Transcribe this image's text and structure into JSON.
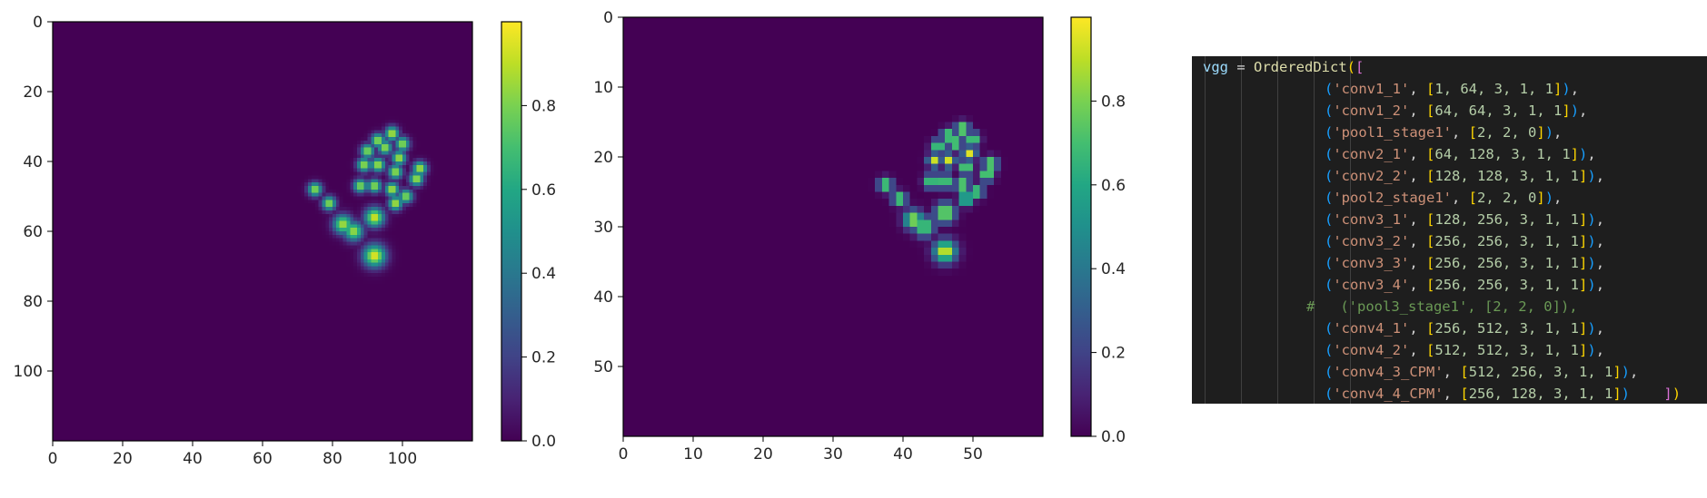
{
  "chart_data": [
    {
      "type": "heatmap",
      "grid_size": [
        120,
        120
      ],
      "xlim": [
        0,
        120
      ],
      "ylim": [
        120,
        0
      ],
      "xticks": [
        0,
        20,
        40,
        60,
        80,
        100
      ],
      "yticks": [
        0,
        20,
        40,
        60,
        80,
        100
      ],
      "colorbar_ticks": [
        0.0,
        0.2,
        0.4,
        0.6,
        0.8
      ],
      "colorbar_tick_labels": [
        "0.0",
        "0.2",
        "0.4",
        "0.6",
        "0.8"
      ],
      "colorbar_range": [
        0.0,
        1.0
      ],
      "colormap": "viridis",
      "sigma": 1.1,
      "peaks": [
        {
          "x": 92,
          "y": 67,
          "v": 0.98,
          "s": 2.0
        },
        {
          "x": 83,
          "y": 58,
          "v": 0.9,
          "s": 1.7
        },
        {
          "x": 86,
          "y": 60,
          "v": 0.88,
          "s": 1.7
        },
        {
          "x": 92,
          "y": 56,
          "v": 0.97,
          "s": 1.7
        },
        {
          "x": 98,
          "y": 52,
          "v": 0.96,
          "s": 1.2
        },
        {
          "x": 101,
          "y": 50,
          "v": 0.88,
          "s": 1.2
        },
        {
          "x": 104,
          "y": 45,
          "v": 0.93,
          "s": 1.2
        },
        {
          "x": 105,
          "y": 42,
          "v": 0.95,
          "s": 1.2
        },
        {
          "x": 97,
          "y": 48,
          "v": 0.95,
          "s": 1.2
        },
        {
          "x": 98,
          "y": 43,
          "v": 0.92,
          "s": 1.2
        },
        {
          "x": 99,
          "y": 39,
          "v": 0.95,
          "s": 1.2
        },
        {
          "x": 100,
          "y": 35,
          "v": 0.9,
          "s": 1.2
        },
        {
          "x": 97,
          "y": 32,
          "v": 0.96,
          "s": 1.2
        },
        {
          "x": 92,
          "y": 47,
          "v": 0.9,
          "s": 1.2
        },
        {
          "x": 93,
          "y": 41,
          "v": 0.93,
          "s": 1.2
        },
        {
          "x": 95,
          "y": 36,
          "v": 0.92,
          "s": 1.2
        },
        {
          "x": 93,
          "y": 34,
          "v": 0.9,
          "s": 1.2
        },
        {
          "x": 88,
          "y": 47,
          "v": 0.88,
          "s": 1.2
        },
        {
          "x": 89,
          "y": 41,
          "v": 0.92,
          "s": 1.2
        },
        {
          "x": 90,
          "y": 37,
          "v": 0.88,
          "s": 1.2
        },
        {
          "x": 79,
          "y": 52,
          "v": 0.9,
          "s": 1.2
        },
        {
          "x": 75,
          "y": 48,
          "v": 0.9,
          "s": 1.2
        }
      ]
    },
    {
      "type": "heatmap",
      "grid_size": [
        60,
        60
      ],
      "xlim": [
        0,
        60
      ],
      "ylim": [
        60,
        0
      ],
      "xticks": [
        0,
        10,
        20,
        30,
        40,
        50
      ],
      "yticks": [
        0,
        10,
        20,
        30,
        40,
        50
      ],
      "colorbar_ticks": [
        0.0,
        0.2,
        0.4,
        0.6,
        0.8
      ],
      "colorbar_tick_labels": [
        "0.0",
        "0.2",
        "0.4",
        "0.6",
        "0.8"
      ],
      "colorbar_range": [
        0.0,
        1.0
      ],
      "colormap": "viridis",
      "sigma": 0.55,
      "peaks": [
        {
          "x": 46,
          "y": 33.5,
          "v": 0.98,
          "s": 2.0
        },
        {
          "x": 41.5,
          "y": 29,
          "v": 0.9,
          "s": 1.7
        },
        {
          "x": 43,
          "y": 30,
          "v": 0.88,
          "s": 1.7
        },
        {
          "x": 46,
          "y": 28,
          "v": 0.97,
          "s": 1.7
        },
        {
          "x": 49,
          "y": 26,
          "v": 0.96,
          "s": 1.2
        },
        {
          "x": 50.5,
          "y": 25,
          "v": 0.88,
          "s": 1.2
        },
        {
          "x": 52,
          "y": 22.5,
          "v": 0.93,
          "s": 1.2
        },
        {
          "x": 52.5,
          "y": 21,
          "v": 0.95,
          "s": 1.2
        },
        {
          "x": 48.5,
          "y": 24,
          "v": 0.95,
          "s": 1.2
        },
        {
          "x": 49,
          "y": 21.5,
          "v": 0.92,
          "s": 1.2
        },
        {
          "x": 49.5,
          "y": 19.5,
          "v": 0.95,
          "s": 1.2
        },
        {
          "x": 50,
          "y": 17.5,
          "v": 0.9,
          "s": 1.2
        },
        {
          "x": 48.5,
          "y": 16,
          "v": 0.96,
          "s": 1.2
        },
        {
          "x": 46,
          "y": 23.5,
          "v": 0.9,
          "s": 1.2
        },
        {
          "x": 46.5,
          "y": 20.5,
          "v": 0.93,
          "s": 1.2
        },
        {
          "x": 47.5,
          "y": 18,
          "v": 0.92,
          "s": 1.2
        },
        {
          "x": 46.5,
          "y": 17,
          "v": 0.9,
          "s": 1.2
        },
        {
          "x": 44,
          "y": 23.5,
          "v": 0.88,
          "s": 1.2
        },
        {
          "x": 44.5,
          "y": 20.5,
          "v": 0.92,
          "s": 1.2
        },
        {
          "x": 45,
          "y": 18.5,
          "v": 0.88,
          "s": 1.2
        },
        {
          "x": 39.5,
          "y": 26,
          "v": 0.9,
          "s": 1.2
        },
        {
          "x": 37.5,
          "y": 24,
          "v": 0.9,
          "s": 1.2
        }
      ]
    }
  ],
  "code": {
    "header": {
      "var": "vgg",
      "op": " = ",
      "fn": "OrderedDict"
    },
    "lines": [
      {
        "name": "'conv1_1'",
        "vals": "1, 64, 3, 1, 1"
      },
      {
        "name": "'conv1_2'",
        "vals": "64, 64, 3, 1, 1"
      },
      {
        "name": "'pool1_stage1'",
        "vals": "2, 2, 0"
      },
      {
        "name": "'conv2_1'",
        "vals": "64, 128, 3, 1, 1"
      },
      {
        "name": "'conv2_2'",
        "vals": "128, 128, 3, 1, 1"
      },
      {
        "name": "'pool2_stage1'",
        "vals": "2, 2, 0"
      },
      {
        "name": "'conv3_1'",
        "vals": "128, 256, 3, 1, 1"
      },
      {
        "name": "'conv3_2'",
        "vals": "256, 256, 3, 1, 1"
      },
      {
        "name": "'conv3_3'",
        "vals": "256, 256, 3, 1, 1"
      },
      {
        "name": "'conv3_4'",
        "vals": "256, 256, 3, 1, 1"
      },
      {
        "comment": "#   ('pool3_stage1', [2, 2, 0]),"
      },
      {
        "name": "'conv4_1'",
        "vals": "256, 512, 3, 1, 1"
      },
      {
        "name": "'conv4_2'",
        "vals": "512, 512, 3, 1, 1"
      },
      {
        "name": "'conv4_3_CPM'",
        "vals": "512, 256, 3, 1, 1"
      },
      {
        "name": "'conv4_4_CPM'",
        "vals": "256, 128, 3, 1, 1",
        "last": true
      }
    ]
  }
}
